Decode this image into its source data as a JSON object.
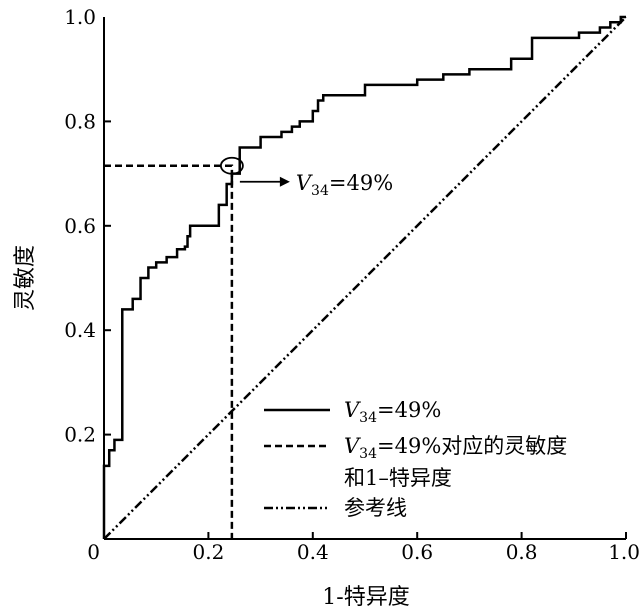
{
  "chart_data": {
    "type": "line",
    "xlabel": "1-特异度",
    "ylabel": "灵敏度",
    "xlim": [
      0,
      1.0
    ],
    "ylim": [
      0,
      1.0
    ],
    "x_ticks": [
      "0",
      "0.2",
      "0.4",
      "0.6",
      "0.8",
      "1.0"
    ],
    "y_ticks": [
      "0",
      "0.2",
      "0.4",
      "0.6",
      "0.8",
      "1.0"
    ],
    "x_tick_values": [
      0,
      0.2,
      0.4,
      0.6,
      0.8,
      1.0
    ],
    "y_tick_values": [
      0,
      0.2,
      0.4,
      0.6,
      0.8,
      1.0
    ],
    "grid": false,
    "legend_position": "bottom-right",
    "series": [
      {
        "name": "V34=49%",
        "name_parts": {
          "var": "V",
          "sub": "34",
          "rest": "=49%"
        },
        "style": "solid",
        "x": [
          0,
          0,
          0.01,
          0.01,
          0.02,
          0.02,
          0.035,
          0.035,
          0.055,
          0.055,
          0.07,
          0.07,
          0.085,
          0.085,
          0.1,
          0.1,
          0.12,
          0.12,
          0.14,
          0.14,
          0.155,
          0.155,
          0.16,
          0.16,
          0.165,
          0.165,
          0.18,
          0.18,
          0.22,
          0.22,
          0.235,
          0.235,
          0.245,
          0.245,
          0.26,
          0.26,
          0.3,
          0.3,
          0.34,
          0.34,
          0.36,
          0.36,
          0.375,
          0.375,
          0.4,
          0.4,
          0.41,
          0.41,
          0.42,
          0.42,
          0.5,
          0.5,
          0.6,
          0.6,
          0.65,
          0.65,
          0.7,
          0.7,
          0.78,
          0.78,
          0.82,
          0.82,
          0.91,
          0.91,
          0.95,
          0.95,
          0.97,
          0.97,
          0.99,
          0.99,
          1.0
        ],
        "y": [
          0,
          0.14,
          0.14,
          0.17,
          0.17,
          0.19,
          0.19,
          0.44,
          0.44,
          0.46,
          0.46,
          0.5,
          0.5,
          0.52,
          0.52,
          0.53,
          0.53,
          0.54,
          0.54,
          0.555,
          0.555,
          0.56,
          0.56,
          0.58,
          0.58,
          0.6,
          0.6,
          0.6,
          0.6,
          0.64,
          0.64,
          0.68,
          0.68,
          0.7,
          0.7,
          0.75,
          0.75,
          0.77,
          0.77,
          0.78,
          0.78,
          0.79,
          0.79,
          0.8,
          0.8,
          0.82,
          0.82,
          0.84,
          0.84,
          0.85,
          0.85,
          0.87,
          0.87,
          0.88,
          0.88,
          0.89,
          0.89,
          0.9,
          0.9,
          0.92,
          0.92,
          0.96,
          0.96,
          0.97,
          0.97,
          0.98,
          0.98,
          0.99,
          0.99,
          1.0,
          1.0
        ]
      },
      {
        "name": "V34=49%对应的灵敏度和1-特异度",
        "name_parts": {
          "var": "V",
          "sub": "34",
          "rest": "=49%对应的灵敏度",
          "line2": "和1–特异度"
        },
        "style": "dashed",
        "x": [
          0,
          0.245,
          0.245
        ],
        "y": [
          0.715,
          0.715,
          0
        ]
      },
      {
        "name": "参考线",
        "style": "dash-dot-dot",
        "x": [
          0,
          1.0
        ],
        "y": [
          0,
          1.0
        ]
      }
    ],
    "annotations": [
      {
        "text": "V34=49%",
        "parts": {
          "var": "V",
          "sub": "34",
          "rest": "=49%"
        },
        "point": {
          "x": 0.245,
          "y": 0.715
        }
      }
    ]
  }
}
